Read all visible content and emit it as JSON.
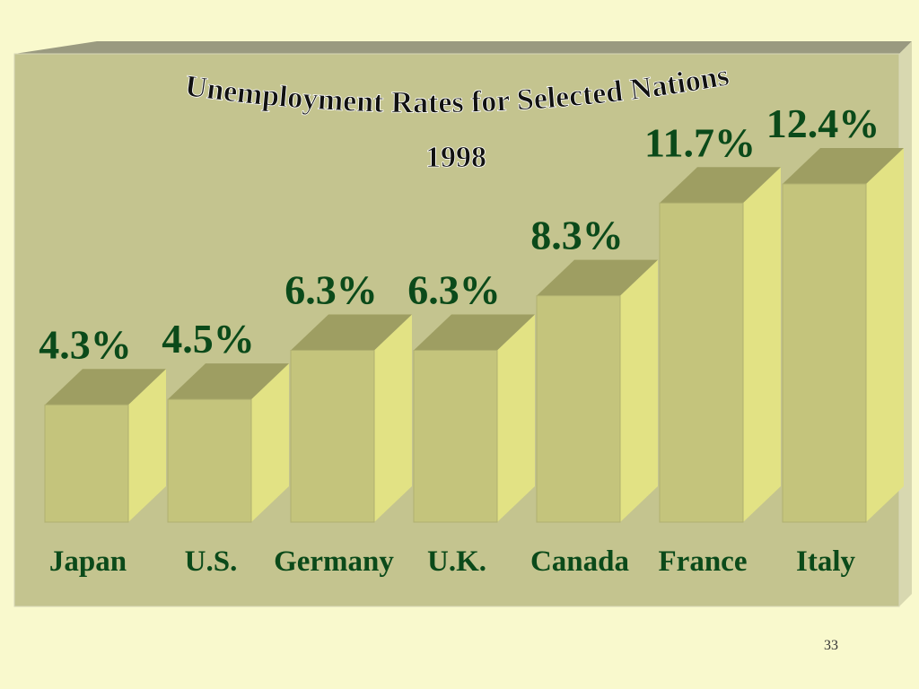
{
  "chart_data": {
    "type": "bar3d",
    "title": "Unemployment Rates for Selected Nations",
    "subtitle": "1998",
    "categories": [
      "Japan",
      "U.S.",
      "Germany",
      "U.K.",
      "Canada",
      "France",
      "Italy"
    ],
    "values": [
      4.3,
      4.5,
      6.3,
      6.3,
      8.3,
      11.7,
      12.4
    ],
    "value_labels": [
      "4.3%",
      "4.5%",
      "6.3%",
      "6.3%",
      "8.3%",
      "11.7%",
      "12.4%"
    ],
    "color": "#c4c47c"
  },
  "page_number": "33"
}
